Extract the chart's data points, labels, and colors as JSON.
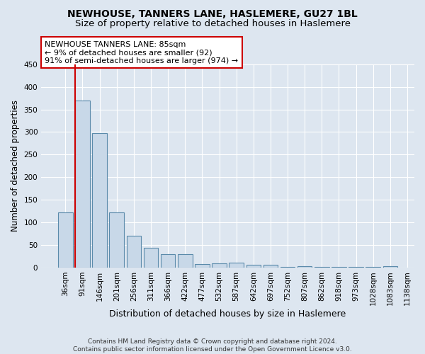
{
  "title": "NEWHOUSE, TANNERS LANE, HASLEMERE, GU27 1BL",
  "subtitle": "Size of property relative to detached houses in Haslemere",
  "xlabel": "Distribution of detached houses by size in Haslemere",
  "ylabel": "Number of detached properties",
  "bar_values": [
    122,
    370,
    298,
    122,
    70,
    44,
    30,
    30,
    8,
    9,
    10,
    6,
    6,
    1,
    3,
    1,
    2,
    1,
    1,
    3
  ],
  "bar_labels": [
    "36sqm",
    "91sqm",
    "146sqm",
    "201sqm",
    "256sqm",
    "311sqm",
    "366sqm",
    "422sqm",
    "477sqm",
    "532sqm",
    "587sqm",
    "642sqm",
    "697sqm",
    "752sqm",
    "807sqm",
    "862sqm",
    "918sqm",
    "973sqm",
    "1028sqm",
    "1083sqm",
    "1138sqm"
  ],
  "bar_color": "#c8d8e8",
  "bar_edgecolor": "#5a8aaa",
  "marker_color": "#cc0000",
  "annotation_text": "NEWHOUSE TANNERS LANE: 85sqm\n← 9% of detached houses are smaller (92)\n91% of semi-detached houses are larger (974) →",
  "annotation_box_color": "#ffffff",
  "annotation_box_edgecolor": "#cc0000",
  "ylim": [
    0,
    450
  ],
  "yticks": [
    0,
    50,
    100,
    150,
    200,
    250,
    300,
    350,
    400,
    450
  ],
  "bg_color": "#dde6f0",
  "plot_bg_color": "#dde6f0",
  "grid_color": "#ffffff",
  "footer_text": "Contains HM Land Registry data © Crown copyright and database right 2024.\nContains public sector information licensed under the Open Government Licence v3.0.",
  "title_fontsize": 10,
  "subtitle_fontsize": 9.5,
  "xlabel_fontsize": 9,
  "ylabel_fontsize": 8.5,
  "tick_fontsize": 7.5,
  "footer_fontsize": 6.5
}
